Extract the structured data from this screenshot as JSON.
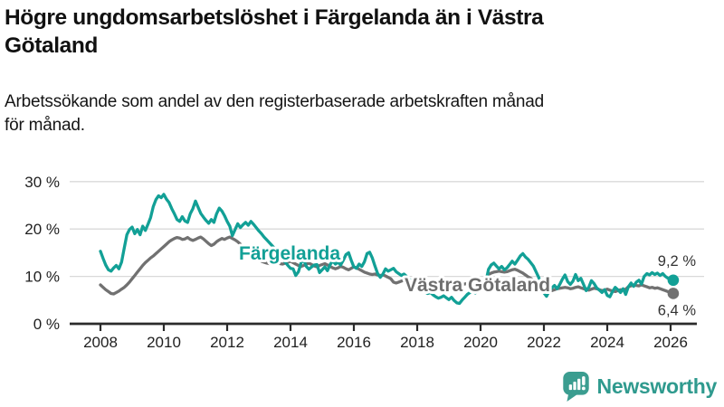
{
  "header": {
    "title_lines": [
      "Högre ungdomsarbetslöshet i Färgelanda än i Västra",
      "Götaland"
    ],
    "subtitle_lines": [
      "Arbetssökande som andel av den registerbaserade arbetskraften månad",
      "för månad."
    ]
  },
  "chart_data": {
    "type": "line",
    "unit": "%",
    "x_range": [
      "2008-01",
      "2026-02"
    ],
    "x_step": "monthly",
    "xticks": [
      2008,
      2010,
      2012,
      2014,
      2016,
      2018,
      2020,
      2022,
      2024,
      2026
    ],
    "yticks": [
      0,
      10,
      20,
      30
    ],
    "ytick_labels": [
      "0 %",
      "10 %",
      "20 %",
      "30 %"
    ],
    "ylim": [
      0,
      32
    ],
    "grid": "horizontal",
    "legend": "inline-labels",
    "series": [
      {
        "name": "Färgelanda",
        "color": "#12a096",
        "end_label": "9,2 %",
        "values": [
          15.3,
          13.8,
          12.4,
          11.4,
          11.1,
          11.8,
          12.3,
          11.6,
          13.0,
          16.0,
          18.8,
          19.9,
          20.4,
          19.0,
          19.9,
          18.8,
          20.6,
          19.7,
          21.0,
          22.4,
          24.7,
          26.2,
          27.0,
          26.6,
          27.3,
          26.3,
          25.6,
          24.3,
          23.2,
          22.0,
          21.6,
          22.6,
          21.7,
          21.4,
          23.2,
          24.3,
          25.9,
          24.6,
          23.3,
          22.5,
          21.8,
          21.2,
          22.0,
          21.4,
          23.2,
          24.4,
          23.8,
          22.8,
          21.6,
          20.6,
          18.6,
          19.9,
          21.1,
          20.3,
          20.9,
          21.4,
          20.8,
          21.6,
          21.0,
          20.3,
          19.6,
          19.0,
          18.3,
          17.7,
          17.1,
          16.5,
          15.9,
          15.2,
          14.4,
          13.6,
          13.0,
          12.3,
          11.7,
          11.6,
          10.2,
          11.0,
          12.9,
          13.5,
          12.1,
          11.5,
          12.0,
          12.4,
          12.5,
          10.8,
          11.4,
          12.0,
          11.2,
          12.5,
          13.3,
          12.6,
          13.0,
          12.4,
          13.4,
          14.6,
          15.0,
          13.4,
          12.0,
          11.7,
          12.6,
          12.1,
          13.1,
          14.8,
          15.1,
          13.9,
          12.2,
          10.6,
          9.8,
          10.5,
          11.6,
          11.1,
          11.4,
          11.7,
          11.0,
          10.6,
          10.2,
          10.5,
          10.0,
          9.4,
          8.9,
          8.4,
          7.9,
          7.4,
          7.0,
          6.7,
          6.4,
          6.6,
          6.1,
          5.7,
          5.4,
          5.6,
          5.9,
          5.5,
          5.1,
          5.6,
          4.9,
          4.4,
          4.3,
          5.0,
          5.6,
          6.2,
          6.6,
          6.9,
          6.5,
          7.0,
          7.2,
          7.5,
          8.8,
          11.5,
          12.4,
          12.8,
          12.2,
          11.6,
          12.1,
          11.4,
          11.8,
          12.5,
          13.2,
          12.6,
          13.4,
          14.3,
          14.8,
          14.1,
          13.6,
          12.9,
          12.2,
          11.0,
          9.8,
          8.2,
          6.5,
          5.8,
          6.9,
          7.6,
          8.1,
          7.4,
          8.3,
          9.4,
          10.3,
          8.9,
          8.3,
          9.0,
          10.4,
          9.1,
          9.6,
          8.3,
          7.0,
          7.7,
          9.1,
          8.5,
          7.6,
          7.1,
          6.6,
          7.2,
          6.0,
          5.7,
          6.8,
          7.7,
          7.2,
          6.6,
          7.4,
          6.2,
          7.8,
          8.6,
          7.9,
          8.8,
          9.2,
          8.4,
          10.0,
          10.6,
          10.3,
          10.8,
          10.4,
          10.7,
          10.2,
          10.6,
          10.0,
          9.6,
          9.4,
          9.2
        ]
      },
      {
        "name": "Västra Götaland",
        "color": "#717171",
        "end_label": "6,4 %",
        "values": [
          8.2,
          7.7,
          7.2,
          6.8,
          6.4,
          6.3,
          6.6,
          6.9,
          7.3,
          7.7,
          8.2,
          8.8,
          9.5,
          10.2,
          10.9,
          11.6,
          12.3,
          12.9,
          13.4,
          13.9,
          14.3,
          14.8,
          15.3,
          15.8,
          16.3,
          16.8,
          17.3,
          17.7,
          18.0,
          18.2,
          18.1,
          17.8,
          17.9,
          18.2,
          17.8,
          17.6,
          17.8,
          18.1,
          18.3,
          17.9,
          17.4,
          16.9,
          16.5,
          16.8,
          17.3,
          17.7,
          18.0,
          17.8,
          18.1,
          18.3,
          18.0,
          17.7,
          17.3,
          16.8,
          16.2,
          15.7,
          15.2,
          14.7,
          14.2,
          13.8,
          13.5,
          13.2,
          13.0,
          12.8,
          12.7,
          12.9,
          13.1,
          12.9,
          12.7,
          12.6,
          12.8,
          13.0,
          13.2,
          12.9,
          12.6,
          12.3,
          12.1,
          12.3,
          12.6,
          12.8,
          12.5,
          12.2,
          12.0,
          12.3,
          12.5,
          12.7,
          12.4,
          12.1,
          11.8,
          11.6,
          11.8,
          12.1,
          11.9,
          11.6,
          11.4,
          11.7,
          12.0,
          11.8,
          11.5,
          11.2,
          10.9,
          10.7,
          10.5,
          10.4,
          10.5,
          10.3,
          10.2,
          10.3,
          10.1,
          9.8,
          9.5,
          8.8,
          8.6,
          8.8,
          9.0,
          9.2,
          9.3,
          9.1,
          9.0,
          9.2,
          9.3,
          9.1,
          8.9,
          8.7,
          8.6,
          8.5,
          8.4,
          8.5,
          8.6,
          8.5,
          8.4,
          8.5,
          8.6,
          8.5,
          8.4,
          8.3,
          8.2,
          8.3,
          8.4,
          8.5,
          8.6,
          8.7,
          8.8,
          8.9,
          9.0,
          9.2,
          9.8,
          10.4,
          10.7,
          10.9,
          11.0,
          11.1,
          11.0,
          10.9,
          11.0,
          11.2,
          11.4,
          11.5,
          11.3,
          11.0,
          10.7,
          10.3,
          9.9,
          9.6,
          9.2,
          8.8,
          8.4,
          8.0,
          7.7,
          7.4,
          7.1,
          7.0,
          7.2,
          7.4,
          7.5,
          7.6,
          7.7,
          7.6,
          7.4,
          7.5,
          7.7,
          7.8,
          7.6,
          7.4,
          7.2,
          7.1,
          7.3,
          7.5,
          7.4,
          7.2,
          7.0,
          7.1,
          7.3,
          7.1,
          6.9,
          6.8,
          7.0,
          7.2,
          7.1,
          7.3,
          7.8,
          8.0,
          8.2,
          8.1,
          8.0,
          8.2,
          8.0,
          7.8,
          7.6,
          7.7,
          7.5,
          7.6,
          7.4,
          7.2,
          7.0,
          6.8,
          6.5,
          6.4
        ]
      }
    ],
    "colors": {
      "grid": "#d9d9d9",
      "axis": "#2b2b2b",
      "tick_text": "#1f1f1f",
      "end_label_text": "#333333"
    }
  },
  "footer": {
    "brand": "Newsworthy",
    "brand_color": "#2f9a8e",
    "logo_icon": "bar-chart-speech-bubble-icon"
  }
}
